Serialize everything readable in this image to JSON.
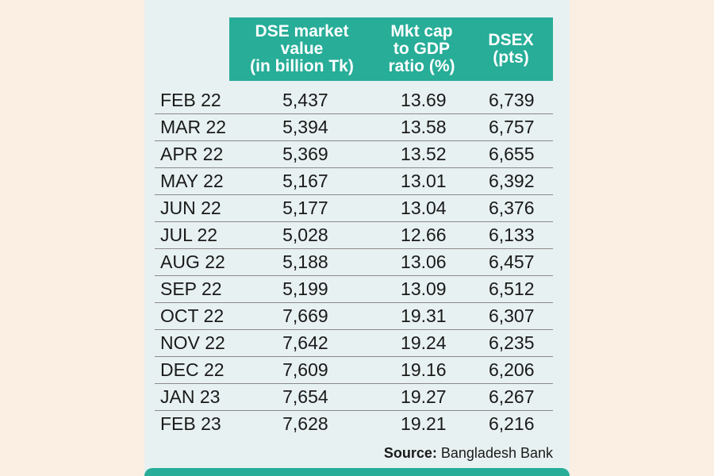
{
  "colors": {
    "accent": "#27ad98",
    "panel": "#e8f1f1",
    "background": "#fbeee2"
  },
  "chart_data": {
    "type": "table",
    "columns": [
      "DSE market value (in billion Tk)",
      "Mkt cap to GDP ratio (%)",
      "DSEX (pts)"
    ],
    "header": {
      "market_value": [
        "DSE market",
        "value",
        "(in billion Tk)"
      ],
      "ratio": [
        "Mkt cap",
        "to GDP",
        "ratio (%)"
      ],
      "dsex": [
        "DSEX",
        "(pts)"
      ]
    },
    "rows": [
      {
        "month": "FEB 22",
        "market_value": "5,437",
        "ratio": "13.69",
        "dsex": "6,739"
      },
      {
        "month": "MAR 22",
        "market_value": "5,394",
        "ratio": "13.58",
        "dsex": "6,757"
      },
      {
        "month": "APR 22",
        "market_value": "5,369",
        "ratio": "13.52",
        "dsex": "6,655"
      },
      {
        "month": "MAY 22",
        "market_value": "5,167",
        "ratio": "13.01",
        "dsex": "6,392"
      },
      {
        "month": "JUN 22",
        "market_value": "5,177",
        "ratio": "13.04",
        "dsex": "6,376"
      },
      {
        "month": "JUL 22",
        "market_value": "5,028",
        "ratio": "12.66",
        "dsex": "6,133"
      },
      {
        "month": "AUG 22",
        "market_value": "5,188",
        "ratio": "13.06",
        "dsex": "6,457"
      },
      {
        "month": "SEP 22",
        "market_value": "5,199",
        "ratio": "13.09",
        "dsex": "6,512"
      },
      {
        "month": "OCT 22",
        "market_value": "7,669",
        "ratio": "19.31",
        "dsex": "6,307"
      },
      {
        "month": "NOV 22",
        "market_value": "7,642",
        "ratio": "19.24",
        "dsex": "6,235"
      },
      {
        "month": "DEC 22",
        "market_value": "7,609",
        "ratio": "19.16",
        "dsex": "6,206"
      },
      {
        "month": "JAN 23",
        "market_value": "7,654",
        "ratio": "19.27",
        "dsex": "6,267"
      },
      {
        "month": "FEB 23",
        "market_value": "7,628",
        "ratio": "19.21",
        "dsex": "6,216"
      }
    ],
    "source_label": "Source:",
    "source_name": "Bangladesh Bank"
  }
}
